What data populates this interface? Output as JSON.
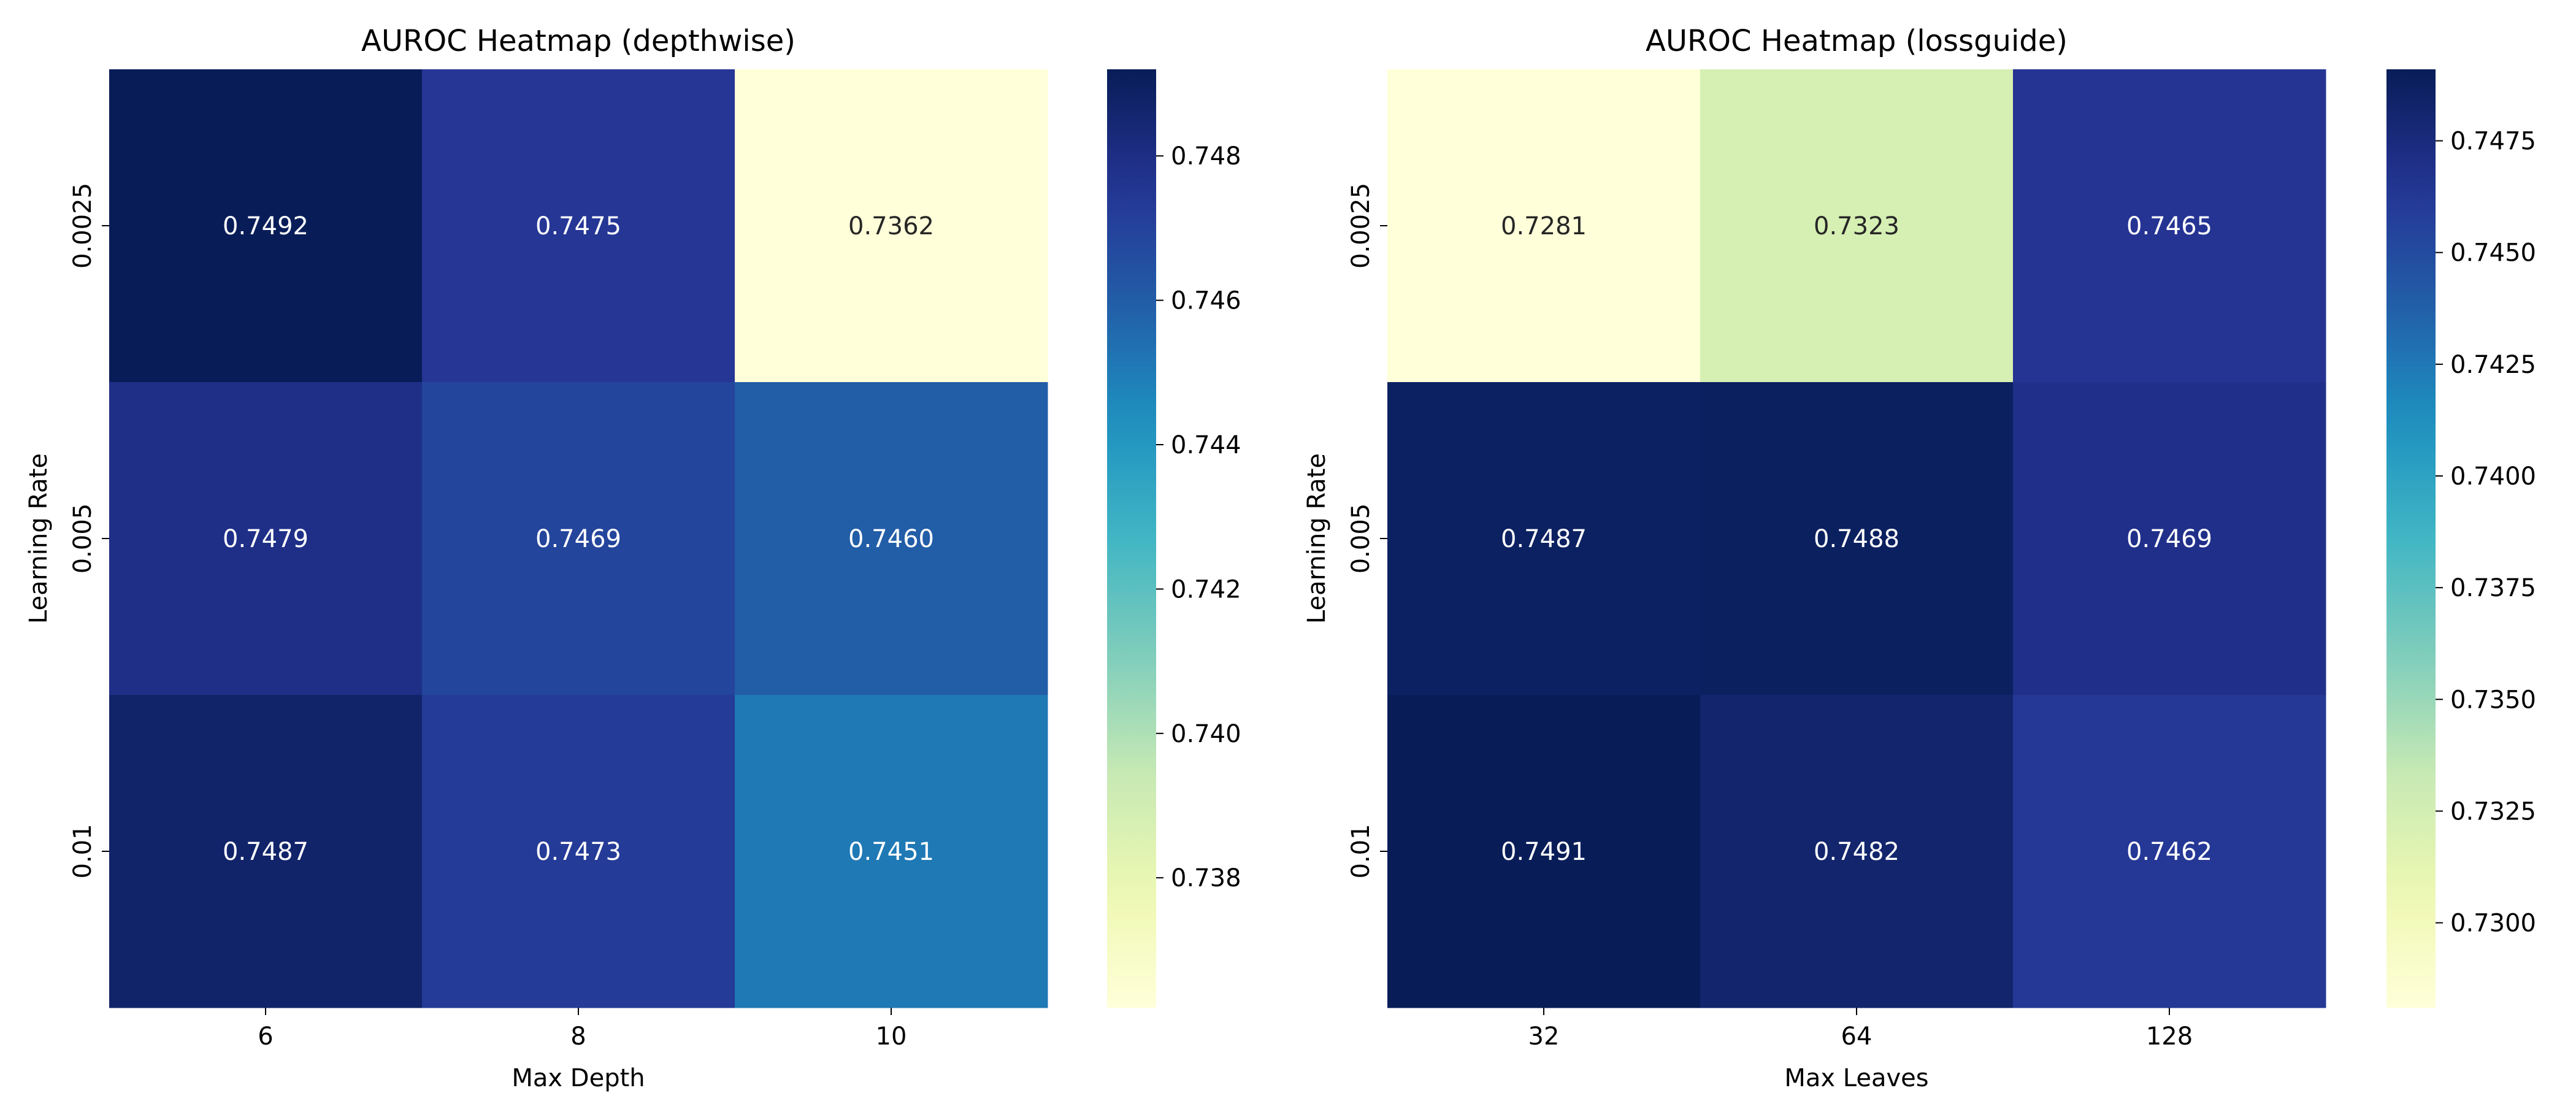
{
  "chart_data": [
    {
      "type": "heatmap",
      "title": "AUROC Heatmap (depthwise)",
      "xlabel": "Max Depth",
      "ylabel": "Learning Rate",
      "x_categories": [
        "6",
        "8",
        "10"
      ],
      "y_categories": [
        "0.0025",
        "0.005",
        "0.01"
      ],
      "values": [
        [
          0.7492,
          0.7475,
          0.7362
        ],
        [
          0.7479,
          0.7469,
          0.746
        ],
        [
          0.7487,
          0.7473,
          0.7451
        ]
      ],
      "value_labels": [
        [
          "0.7492",
          "0.7475",
          "0.7362"
        ],
        [
          "0.7479",
          "0.7469",
          "0.7460"
        ],
        [
          "0.7487",
          "0.7473",
          "0.7451"
        ]
      ],
      "colormap": "YlGnBu",
      "color_range": [
        0.7362,
        0.7492
      ],
      "colorbar_ticks": [
        "0.738",
        "0.740",
        "0.742",
        "0.744",
        "0.746",
        "0.748"
      ]
    },
    {
      "type": "heatmap",
      "title": "AUROC Heatmap (lossguide)",
      "xlabel": "Max Leaves",
      "ylabel": "Learning Rate",
      "x_categories": [
        "32",
        "64",
        "128"
      ],
      "y_categories": [
        "0.0025",
        "0.005",
        "0.01"
      ],
      "values": [
        [
          0.7281,
          0.7323,
          0.7465
        ],
        [
          0.7487,
          0.7488,
          0.7469
        ],
        [
          0.7491,
          0.7482,
          0.7462
        ]
      ],
      "value_labels": [
        [
          "0.7281",
          "0.7323",
          "0.7465"
        ],
        [
          "0.7487",
          "0.7488",
          "0.7469"
        ],
        [
          "0.7491",
          "0.7482",
          "0.7462"
        ]
      ],
      "colormap": "YlGnBu",
      "color_range": [
        0.7281,
        0.7491
      ],
      "colorbar_ticks": [
        "0.7300",
        "0.7325",
        "0.7350",
        "0.7375",
        "0.7400",
        "0.7425",
        "0.7450",
        "0.7475"
      ]
    }
  ]
}
